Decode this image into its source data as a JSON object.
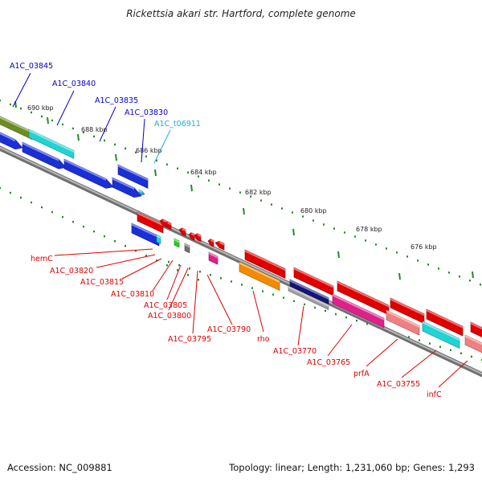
{
  "title": "Rickettsia akari str. Hartford, complete genome",
  "footer": {
    "accession": "Accession: NC_009881",
    "summary": "Topology: linear; Length: 1,231,060 bp; Genes: 1,293"
  },
  "colors": {
    "forward_label": "#0000cc",
    "trna_label": "#22aadd",
    "reverse_label": "#dd0000",
    "backbone": "#808080",
    "tick": "#228b22"
  },
  "scale_labels": [
    "690 kbp",
    "688 kbp",
    "686 kbp",
    "684 kbp",
    "682 kbp",
    "680 kbp",
    "678 kbp",
    "676 kbp"
  ],
  "forward_labels": [
    "A1C_03845",
    "A1C_03840",
    "A1C_03835",
    "A1C_03830",
    "A1C_t06911"
  ],
  "reverse_labels": [
    "hemC",
    "A1C_03820",
    "A1C_03815",
    "A1C_03810",
    "A1C_03805",
    "A1C_03800",
    "A1C_03795",
    "A1C_03790",
    "rho",
    "A1C_03770",
    "A1C_03765",
    "prfA",
    "A1C_03755",
    "infC"
  ]
}
